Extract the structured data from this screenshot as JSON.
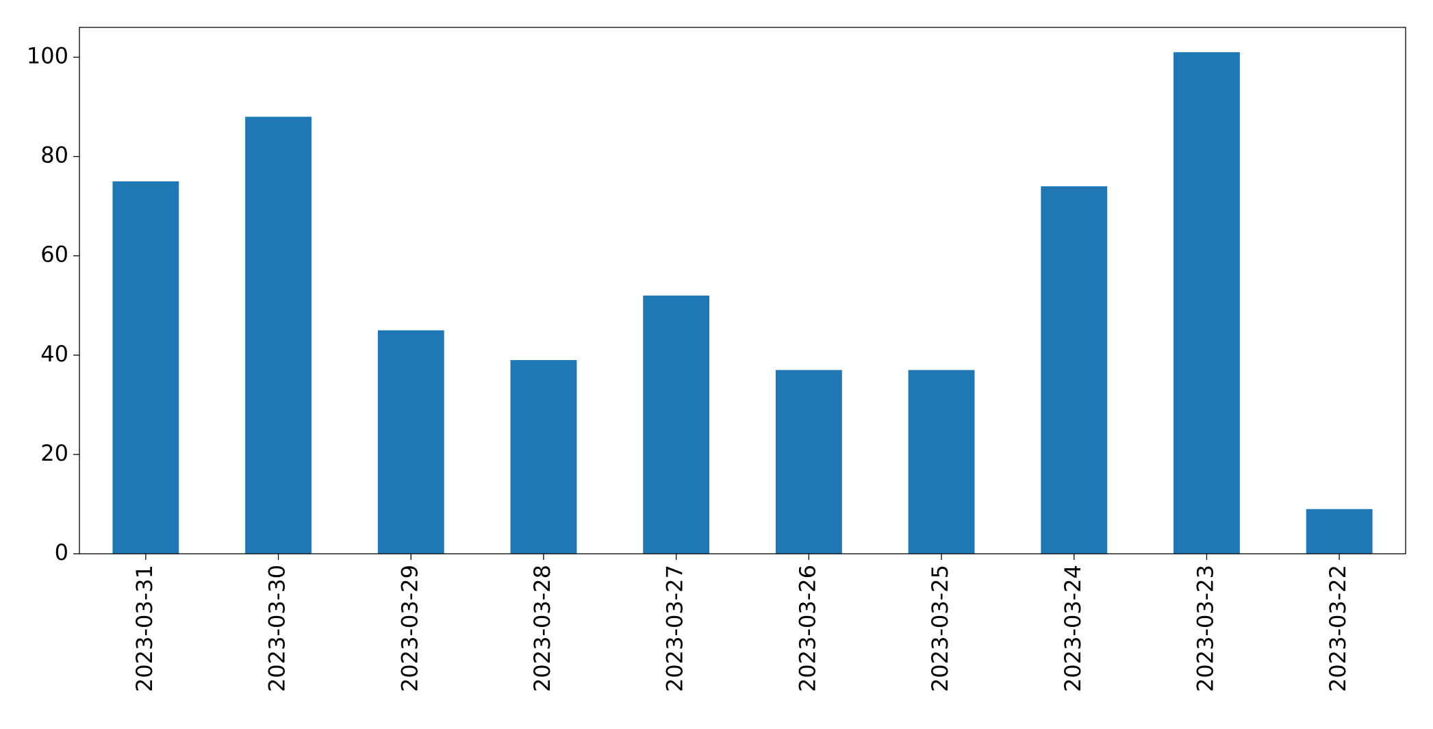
{
  "chart_data": {
    "type": "bar",
    "categories": [
      "2023-03-31",
      "2023-03-30",
      "2023-03-29",
      "2023-03-28",
      "2023-03-27",
      "2023-03-26",
      "2023-03-25",
      "2023-03-24",
      "2023-03-23",
      "2023-03-22"
    ],
    "values": [
      75,
      88,
      45,
      39,
      52,
      37,
      37,
      74,
      101,
      9
    ],
    "color": "#1f77b4",
    "ylim": [
      0,
      106
    ],
    "yticks": [
      0,
      20,
      40,
      60,
      80,
      100
    ],
    "grid": false
  }
}
